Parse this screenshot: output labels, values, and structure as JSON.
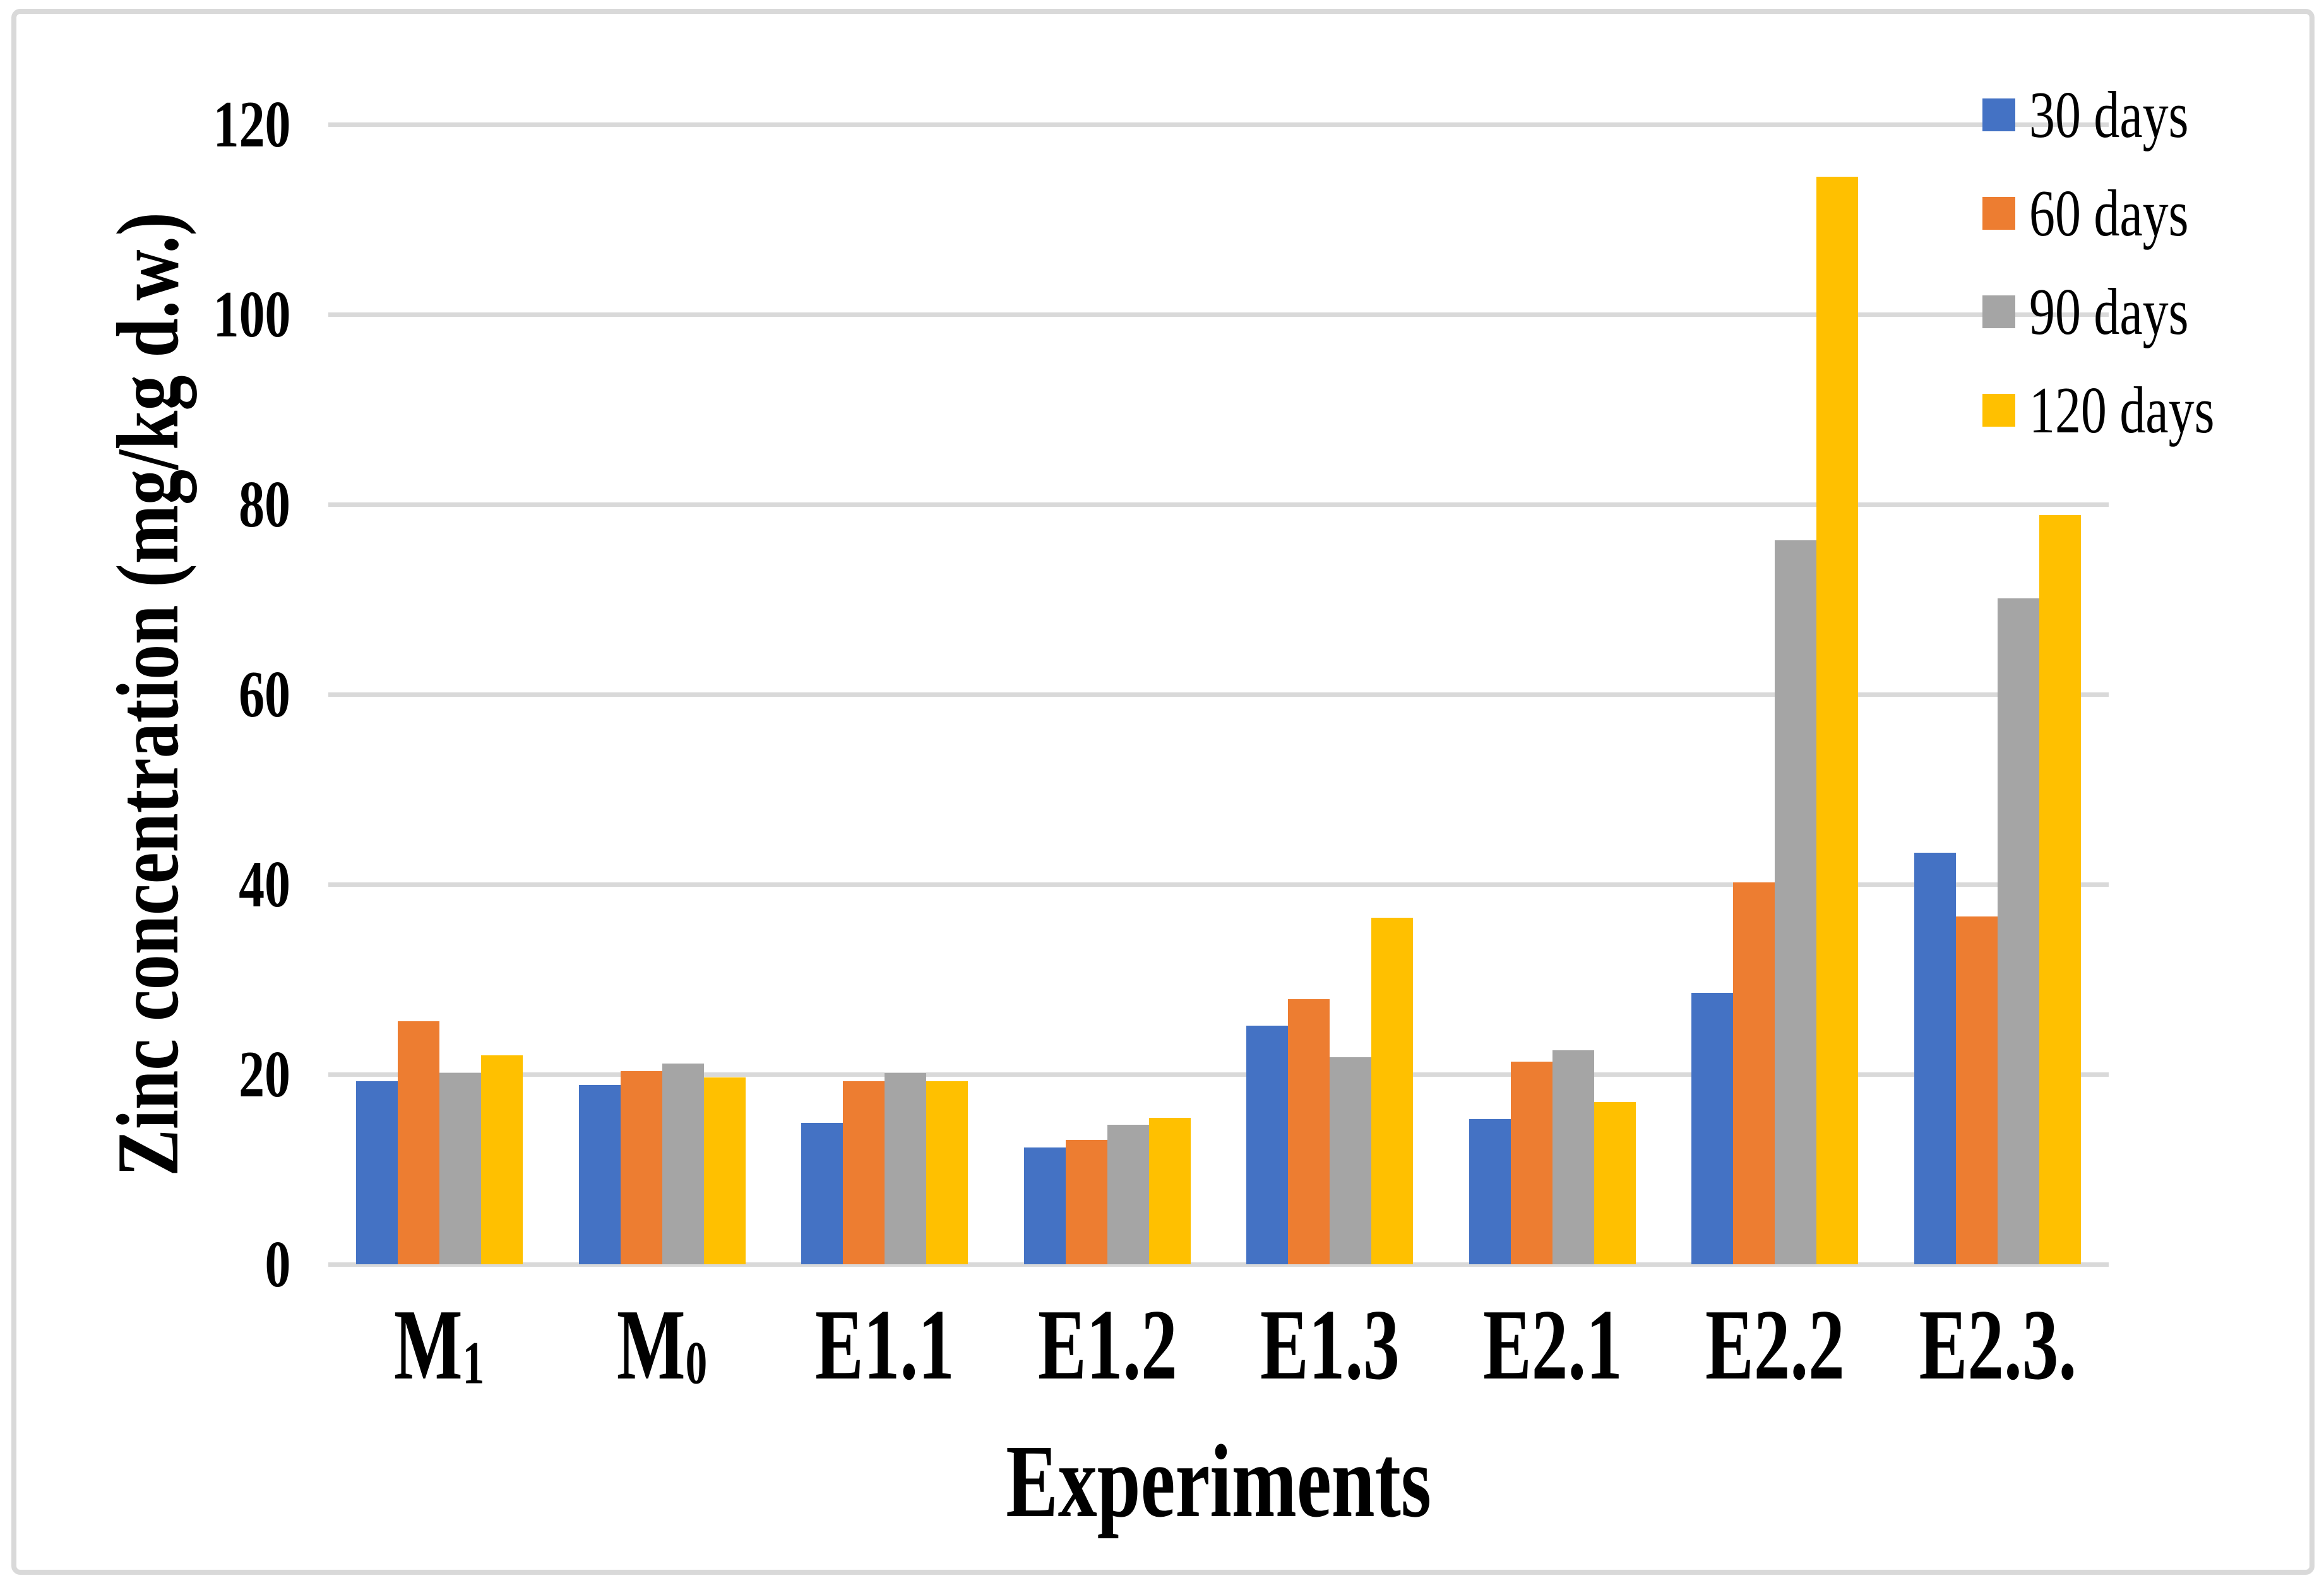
{
  "figure": {
    "background_color": "#FFFFFF",
    "border_color": "#D9D9D9",
    "gridline_color": "#D9D9D9"
  },
  "chart_data": {
    "type": "bar",
    "title": "",
    "xlabel": "Experiments",
    "ylabel": "Zinc concentration (mg/kg d.w.)",
    "ylim": [
      0,
      120
    ],
    "yticks": [
      0,
      20,
      40,
      60,
      80,
      100,
      120
    ],
    "grid": true,
    "legend_position": "top-right",
    "categories": [
      {
        "base": "M",
        "sub": "1"
      },
      {
        "base": "M",
        "sub": "0"
      },
      {
        "base": "E1.1",
        "sub": ""
      },
      {
        "base": "E1.2",
        "sub": ""
      },
      {
        "base": "E1.3",
        "sub": ""
      },
      {
        "base": "E2.1",
        "sub": ""
      },
      {
        "base": "E2.2",
        "sub": ""
      },
      {
        "base": "E2.3.",
        "sub": ""
      }
    ],
    "series": [
      {
        "name": "30 days",
        "color": "#4472C4",
        "values": [
          19.3,
          18.9,
          14.9,
          12.3,
          25.1,
          15.3,
          28.6,
          43.3
        ]
      },
      {
        "name": "60 days",
        "color": "#ED7D31",
        "values": [
          25.6,
          20.3,
          19.3,
          13.1,
          27.9,
          21.3,
          40.2,
          36.6
        ]
      },
      {
        "name": "90 days",
        "color": "#A5A5A5",
        "values": [
          20.1,
          21.1,
          20.1,
          14.7,
          21.8,
          22.5,
          76.2,
          70.1
        ]
      },
      {
        "name": "120 days",
        "color": "#FFC000",
        "values": [
          22.0,
          19.7,
          19.3,
          15.4,
          36.5,
          17.1,
          114.5,
          78.9
        ]
      }
    ]
  }
}
